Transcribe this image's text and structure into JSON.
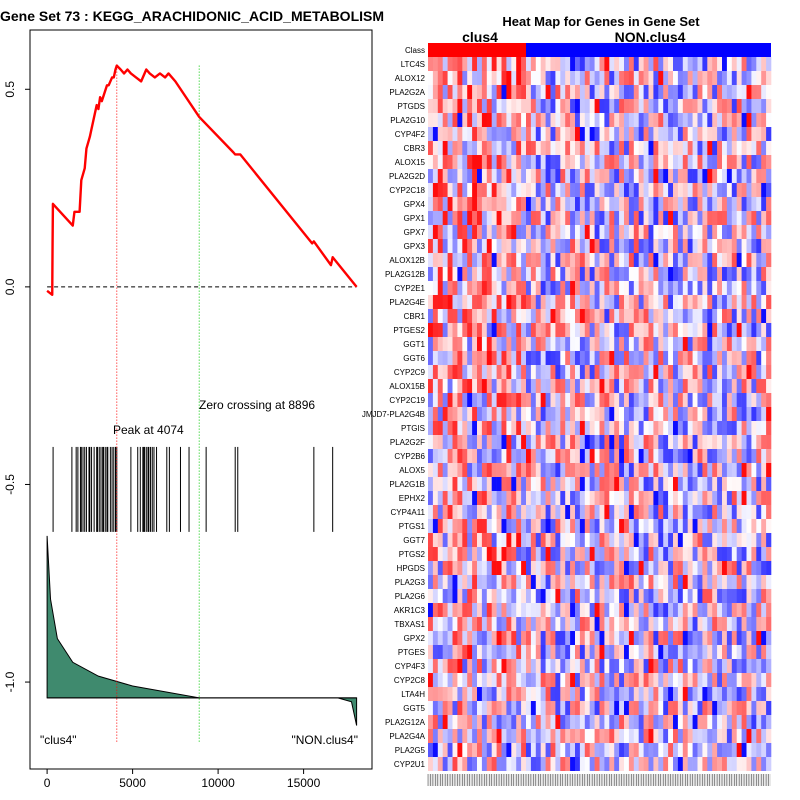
{
  "chart_data": [
    {
      "type": "line",
      "title": "Gene Set  73 : KEGG_ARACHIDONIC_ACID_METABOLISM",
      "xlabel": "",
      "ylabel": "",
      "xlim": [
        -1000,
        19000
      ],
      "ylim": [
        -1.22,
        0.65
      ],
      "x_ticks": [
        0,
        5000,
        10000,
        15000
      ],
      "x_tick_labels": [
        "0",
        "5000",
        "10000",
        "15000"
      ],
      "y_ticks": [
        -1.0,
        -0.5,
        0.0,
        0.5
      ],
      "y_tick_labels": [
        "-1.0",
        "-0.5",
        "0.0",
        "0.5"
      ],
      "colors": {
        "es_curve": "#ff0000",
        "peak_line": "#ff0000",
        "zero_line": "#00c800",
        "ranked_fill": "#3f8a6e",
        "hits": "#000000"
      },
      "series": [
        {
          "name": "running enrichment score",
          "x": [
            0,
            300,
            320,
            340,
            1500,
            1600,
            1900,
            2000,
            2200,
            2300,
            2500,
            2600,
            2900,
            3000,
            3100,
            3200,
            3500,
            3600,
            3800,
            3900,
            4000,
            4074,
            4300,
            4500,
            4700,
            4900,
            5200,
            5500,
            5800,
            6000,
            6300,
            6600,
            6900,
            7100,
            7500,
            8896,
            10900,
            11000,
            11300,
            15500,
            15600,
            16600,
            16700,
            18100
          ],
          "values": [
            -0.01,
            -0.02,
            0.11,
            0.21,
            0.155,
            0.19,
            0.19,
            0.27,
            0.3,
            0.35,
            0.38,
            0.4,
            0.46,
            0.45,
            0.48,
            0.47,
            0.51,
            0.51,
            0.53,
            0.53,
            0.55,
            0.56,
            0.55,
            0.54,
            0.55,
            0.54,
            0.53,
            0.52,
            0.55,
            0.54,
            0.53,
            0.54,
            0.53,
            0.54,
            0.52,
            0.43,
            0.34,
            0.335,
            0.335,
            0.11,
            0.115,
            0.055,
            0.075,
            0.0
          ]
        },
        {
          "name": "gene set hits (rank positions)",
          "x": [
            350,
            1450,
            1700,
            1800,
            1950,
            2000,
            2100,
            2200,
            2300,
            2450,
            2500,
            2600,
            2750,
            2900,
            2950,
            3050,
            3150,
            3250,
            3300,
            3400,
            3500,
            3550,
            3700,
            3800,
            3900,
            4000,
            4074,
            4900,
            5300,
            5450,
            5600,
            5650,
            5700,
            5800,
            5900,
            5950,
            6050,
            6150,
            6250,
            6400,
            7000,
            7150,
            7800,
            8300,
            9300,
            11000,
            11150,
            15600,
            16700
          ]
        },
        {
          "name": "ranked list metric",
          "x": [
            0,
            200,
            600,
            1500,
            3000,
            5000,
            8896,
            12000,
            15000,
            17000,
            17800,
            18100
          ],
          "values": [
            -0.63,
            -0.79,
            -0.89,
            -0.95,
            -0.985,
            -1.01,
            -1.04,
            -1.04,
            -1.04,
            -1.04,
            -1.05,
            -1.11
          ]
        }
      ],
      "annotations": {
        "peak_label": "Peak at 4074",
        "peak_x": 4074,
        "zero_label": "Zero crossing at 8896",
        "zero_x": 8896,
        "left_label": "\"clus4\"",
        "right_label": "\"NON.clus4\""
      }
    },
    {
      "type": "heatmap",
      "title": "Heat Map for Genes in Gene Set",
      "class_labels": [
        "clus4",
        "NON.clus4"
      ],
      "class_colors": [
        "#ff0000",
        "#0000ff"
      ],
      "class_row_label": "Class",
      "class_split_fraction": 0.28,
      "colors": {
        "low": "#0000ff",
        "mid": "#ffffff",
        "high": "#ff0000"
      },
      "genes": [
        "LTC4S",
        "ALOX12",
        "PLA2G2A",
        "PTGDS",
        "PLA2G10",
        "CYP4F2",
        "CBR3",
        "ALOX15",
        "PLA2G2D",
        "CYP2C18",
        "GPX4",
        "GPX1",
        "GPX7",
        "GPX3",
        "ALOX12B",
        "PLA2G12B",
        "CYP2E1",
        "PLA2G4E",
        "CBR1",
        "PTGES2",
        "GGT1",
        "GGT6",
        "CYP2C9",
        "ALOX15B",
        "CYP2C19",
        "JMJD7-PLA2G4B",
        "PTGIS",
        "PLA2G2F",
        "CYP2B6",
        "ALOX5",
        "PLA2G1B",
        "EPHX2",
        "CYP4A11",
        "PTGS1",
        "GGT7",
        "PTGS2",
        "HPGDS",
        "PLA2G3",
        "PLA2G6",
        "AKR1C3",
        "TBXAS1",
        "GPX2",
        "PTGES",
        "CYP4F3",
        "CYP2C8",
        "LTA4H",
        "GGT5",
        "PLA2G12A",
        "PLA2G4A",
        "PLA2G5",
        "CYP2U1"
      ]
    }
  ]
}
